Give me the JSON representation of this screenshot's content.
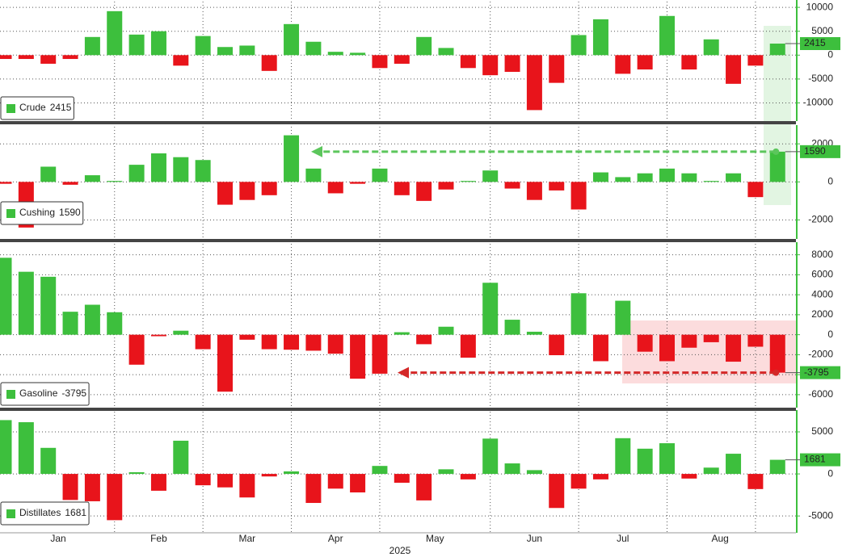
{
  "chart_data": [
    {
      "type": "bar",
      "ylim": [
        -13800,
        11200
      ],
      "yticks": [
        -10000,
        -5000,
        0,
        5000,
        10000
      ],
      "grid": true,
      "series": [
        {
          "name": "Crude",
          "color": "#3dbf3d",
          "negative_color": "#e8141b",
          "values": [
            -800,
            -800,
            -1800,
            -800,
            3800,
            9200,
            4300,
            5000,
            -2200,
            4000,
            1700,
            2000,
            -3300,
            6500,
            2800,
            700,
            500,
            -2700,
            -1800,
            3800,
            1500,
            -2700,
            -4200,
            -3500,
            -11500,
            -5800,
            4200,
            7500,
            -3900,
            -3000,
            8200,
            -3000,
            3300,
            -6000,
            -2200,
            2415
          ]
        }
      ]
    },
    {
      "type": "bar",
      "ylim": [
        -3000,
        2900
      ],
      "yticks": [
        -2000,
        0,
        2000
      ],
      "grid": true,
      "series": [
        {
          "name": "Cushing",
          "color": "#3dbf3d",
          "negative_color": "#e8141b",
          "values": [
            -100,
            -2400,
            800,
            -150,
            350,
            50,
            900,
            1500,
            1300,
            1150,
            -1200,
            -950,
            -700,
            2450,
            700,
            -600,
            -100,
            700,
            -700,
            -1000,
            -400,
            50,
            600,
            -350,
            -950,
            -450,
            -1450,
            500,
            250,
            450,
            700,
            450,
            50,
            450,
            -800,
            1590
          ]
        }
      ]
    },
    {
      "type": "bar",
      "ylim": [
        -7300,
        9100
      ],
      "yticks": [
        -6000,
        -4000,
        -2000,
        0,
        2000,
        4000,
        6000,
        8000
      ],
      "grid": true,
      "series": [
        {
          "name": "Gasoline",
          "color": "#3dbf3d",
          "negative_color": "#e8141b",
          "values": [
            7700,
            6300,
            5800,
            2300,
            3000,
            2250,
            -3000,
            -150,
            400,
            -1450,
            -5700,
            -500,
            -1450,
            -1500,
            -1600,
            -1900,
            -4400,
            -3900,
            250,
            -950,
            800,
            -2300,
            5200,
            1500,
            300,
            -2050,
            4150,
            -2650,
            3400,
            -1700,
            -2650,
            -1300,
            -750,
            -2700,
            -1200,
            -3795
          ]
        }
      ]
    },
    {
      "type": "bar",
      "ylim": [
        -7000,
        7400
      ],
      "yticks": [
        -5000,
        0,
        5000
      ],
      "grid": true,
      "series": [
        {
          "name": "Distillates",
          "color": "#3dbf3d",
          "negative_color": "#e8141b",
          "values": [
            6400,
            6150,
            3100,
            -3100,
            -3250,
            -5500,
            200,
            -2000,
            3950,
            -1350,
            -1600,
            -2800,
            -300,
            300,
            -3450,
            -1750,
            -2200,
            950,
            -1050,
            -3150,
            550,
            -650,
            4200,
            1250,
            450,
            -4050,
            -1750,
            -650,
            4250,
            3000,
            3650,
            -550,
            750,
            2400,
            -1800,
            1681
          ]
        }
      ],
      "xtick_labels": [
        "Jan",
        "Feb",
        "Mar",
        "Apr",
        "May",
        "Jun",
        "Jul",
        "Aug"
      ],
      "xlabel": "2025"
    }
  ]
}
